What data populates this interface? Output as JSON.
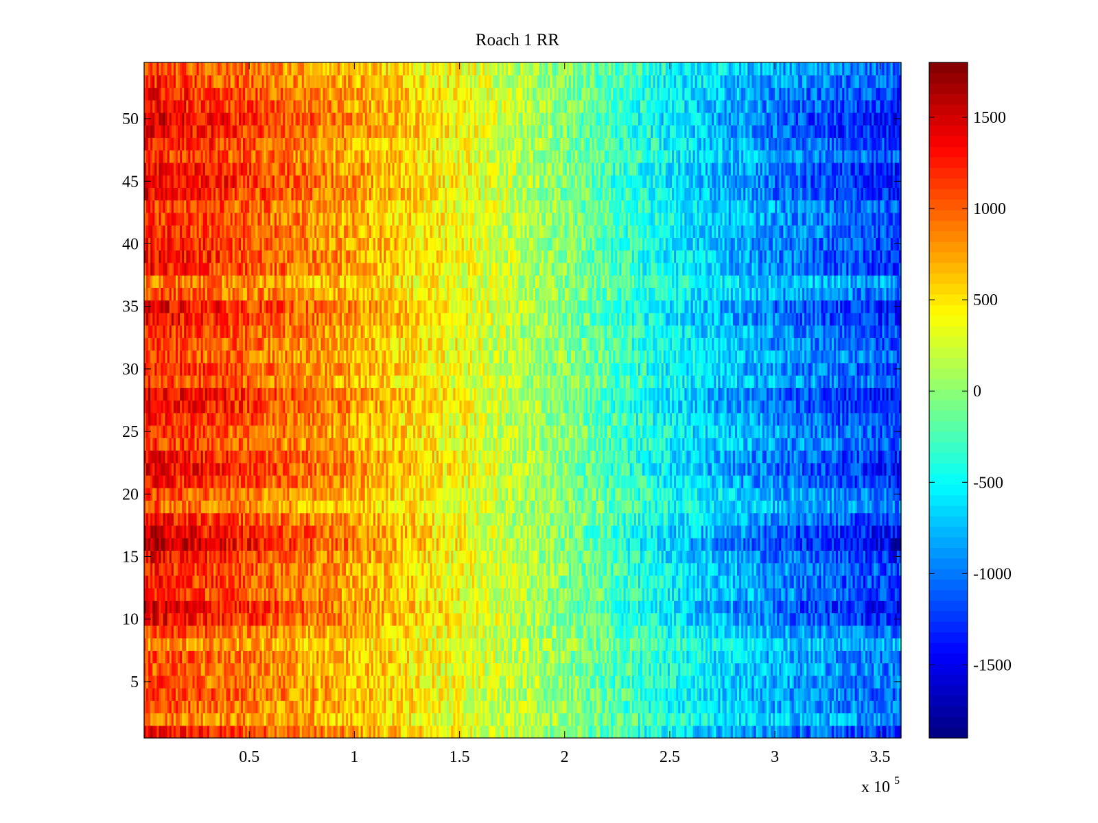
{
  "chart_data": {
    "type": "heatmap",
    "title": "Roach 1 RR",
    "xlabel": "",
    "ylabel": "",
    "x_multiplier_label": {
      "base": "x 10",
      "exponent": "5"
    },
    "xlim": [
      0,
      360000
    ],
    "ylim": [
      0.5,
      54.5
    ],
    "rows": 54,
    "colormap": "jet",
    "x_ticks": [
      {
        "value": 50000,
        "label": "0.5"
      },
      {
        "value": 100000,
        "label": "1"
      },
      {
        "value": 150000,
        "label": "1.5"
      },
      {
        "value": 200000,
        "label": "2"
      },
      {
        "value": 250000,
        "label": "2.5"
      },
      {
        "value": 300000,
        "label": "3"
      },
      {
        "value": 350000,
        "label": "3.5"
      }
    ],
    "y_ticks": [
      {
        "value": 5,
        "label": "5"
      },
      {
        "value": 10,
        "label": "10"
      },
      {
        "value": 15,
        "label": "15"
      },
      {
        "value": 20,
        "label": "20"
      },
      {
        "value": 25,
        "label": "25"
      },
      {
        "value": 30,
        "label": "30"
      },
      {
        "value": 35,
        "label": "35"
      },
      {
        "value": 40,
        "label": "40"
      },
      {
        "value": 45,
        "label": "45"
      },
      {
        "value": 50,
        "label": "50"
      }
    ],
    "colorbar": {
      "range": [
        -1900,
        1800
      ],
      "ticks": [
        {
          "value": 1500,
          "label": "1500"
        },
        {
          "value": 1000,
          "label": "1000"
        },
        {
          "value": 500,
          "label": "500"
        },
        {
          "value": 0,
          "label": "0"
        },
        {
          "value": -500,
          "label": "-500"
        },
        {
          "value": -1000,
          "label": "-1000"
        },
        {
          "value": -1500,
          "label": "-1500"
        }
      ]
    },
    "trend_x": [
      0,
      50000,
      100000,
      150000,
      200000,
      250000,
      300000,
      360000
    ],
    "trend_values": [
      1100,
      900,
      650,
      350,
      0,
      -450,
      -800,
      -1050
    ],
    "row_offsets": [
      250,
      -150,
      0,
      50,
      0,
      -50,
      0,
      -250,
      0,
      300,
      400,
      150,
      200,
      150,
      300,
      550,
      400,
      200,
      -100,
      0,
      250,
      350,
      300,
      100,
      100,
      200,
      350,
      350,
      50,
      150,
      0,
      100,
      150,
      300,
      350,
      0,
      -150,
      200,
      250,
      200,
      150,
      100,
      100,
      300,
      350,
      300,
      100,
      200,
      350,
      400,
      250,
      200,
      100,
      0
    ],
    "noise_amplitude": 320
  }
}
